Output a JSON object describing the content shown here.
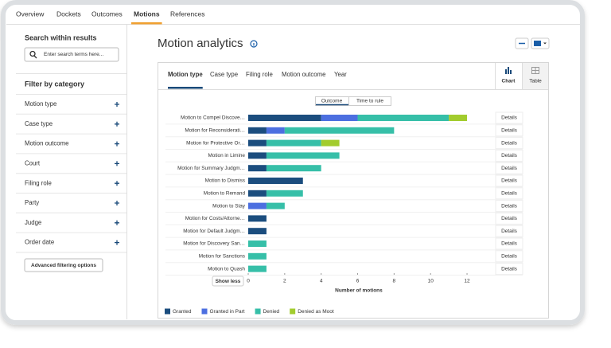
{
  "nav": {
    "tabs": [
      "Overview",
      "Dockets",
      "Outcomes",
      "Motions",
      "References"
    ],
    "active": 3
  },
  "sidebar": {
    "search_title": "Search within results",
    "search_placeholder": "Enter search terms here...",
    "filter_title": "Filter by category",
    "filters": [
      "Motion type",
      "Case type",
      "Motion outcome",
      "Court",
      "Filing role",
      "Party",
      "Judge",
      "Order date"
    ],
    "advanced_button": "Advanced filtering options"
  },
  "main": {
    "title": "Motion analytics",
    "tabs": [
      "Motion type",
      "Case type",
      "Filing role",
      "Motion outcome",
      "Year"
    ],
    "active_tab": 0,
    "view_buttons": [
      "Chart",
      "Table"
    ],
    "toggle": [
      "Outcome",
      "Time to rule"
    ],
    "show_less": "Show less",
    "details_label": "Details"
  },
  "chart_data": {
    "type": "bar",
    "orientation": "horizontal",
    "stacked": true,
    "categories": [
      "Motion to Compel Discove…",
      "Motion for Reconsiderati…",
      "Motion for Protective Or…",
      "Motion in Limine",
      "Motion for Summary Judgm…",
      "Motion to Dismiss",
      "Motion to Remand",
      "Motion to Stay",
      "Motion for Costs/Attorne…",
      "Motion for Default Judgm…",
      "Motion for Discovery San…",
      "Motion for Sanctions",
      "Motion to Quash"
    ],
    "series": [
      {
        "name": "Granted",
        "color": "#1b4d7e",
        "values": [
          4,
          1,
          1,
          1,
          1,
          3,
          1,
          0,
          1,
          1,
          0,
          0,
          0
        ]
      },
      {
        "name": "Granted in Part",
        "color": "#4c6fe0",
        "values": [
          2,
          1,
          0,
          0,
          0,
          0,
          0,
          1,
          0,
          0,
          0,
          0,
          0
        ]
      },
      {
        "name": "Denied",
        "color": "#36bfa8",
        "values": [
          5,
          6,
          3,
          4,
          3,
          0,
          2,
          1,
          0,
          0,
          1,
          1,
          1
        ]
      },
      {
        "name": "Denied as Moot",
        "color": "#a2cc2e",
        "values": [
          1,
          0,
          1,
          0,
          0,
          0,
          0,
          0,
          0,
          0,
          0,
          0,
          0
        ]
      }
    ],
    "xlim": [
      0,
      13
    ],
    "xticks": [
      0,
      2,
      4,
      6,
      8,
      10,
      12
    ],
    "xlabel": "Number of motions"
  }
}
